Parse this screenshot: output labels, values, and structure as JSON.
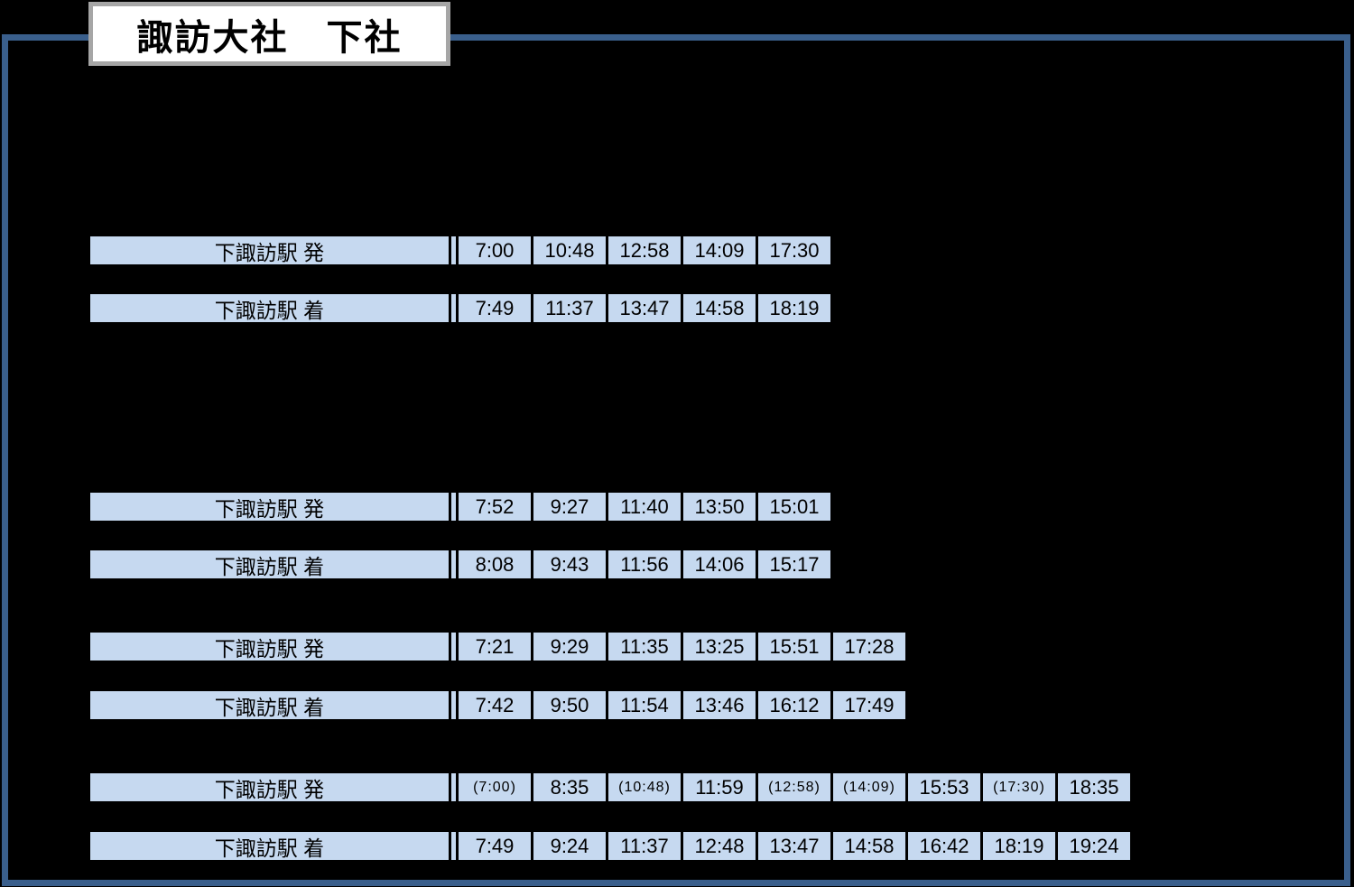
{
  "title": "諏訪大社　下社",
  "colors": {
    "background": "#000000",
    "frame_border": "#3a5f8c",
    "title_box_fill": "#ffffff",
    "title_box_border": "#a6a6a6",
    "cell_fill": "#c6d9f0",
    "cell_text": "#000000"
  },
  "station_column": {
    "depart_label": "下諏訪駅 発",
    "arrive_label": "下諏訪駅 着"
  },
  "sections": [
    {
      "rows": [
        {
          "label": "下諏訪駅 発",
          "times": [
            "7:00",
            "10:48",
            "12:58",
            "14:09",
            "17:30"
          ]
        },
        {
          "label": "下諏訪駅 着",
          "times": [
            "7:49",
            "11:37",
            "13:47",
            "14:58",
            "18:19"
          ]
        }
      ]
    },
    {
      "rows": [
        {
          "label": "下諏訪駅 発",
          "times": [
            "7:52",
            "9:27",
            "11:40",
            "13:50",
            "15:01"
          ]
        },
        {
          "label": "下諏訪駅 着",
          "times": [
            "8:08",
            "9:43",
            "11:56",
            "14:06",
            "15:17"
          ]
        }
      ]
    },
    {
      "rows": [
        {
          "label": "下諏訪駅 発",
          "times": [
            "7:21",
            "9:29",
            "11:35",
            "13:25",
            "15:51",
            "17:28"
          ]
        },
        {
          "label": "下諏訪駅 着",
          "times": [
            "7:42",
            "9:50",
            "11:54",
            "13:46",
            "16:12",
            "17:49"
          ]
        }
      ]
    },
    {
      "rows": [
        {
          "label": "下諏訪駅 発",
          "times": [
            "(7:00)",
            "8:35",
            "(10:48)",
            "11:59",
            "(12:58)",
            "(14:09)",
            "15:53",
            "(17:30)",
            "18:35"
          ]
        },
        {
          "label": "下諏訪駅 着",
          "times": [
            "7:49",
            "9:24",
            "11:37",
            "12:48",
            "13:47",
            "14:58",
            "16:42",
            "18:19",
            "19:24"
          ]
        }
      ]
    }
  ]
}
